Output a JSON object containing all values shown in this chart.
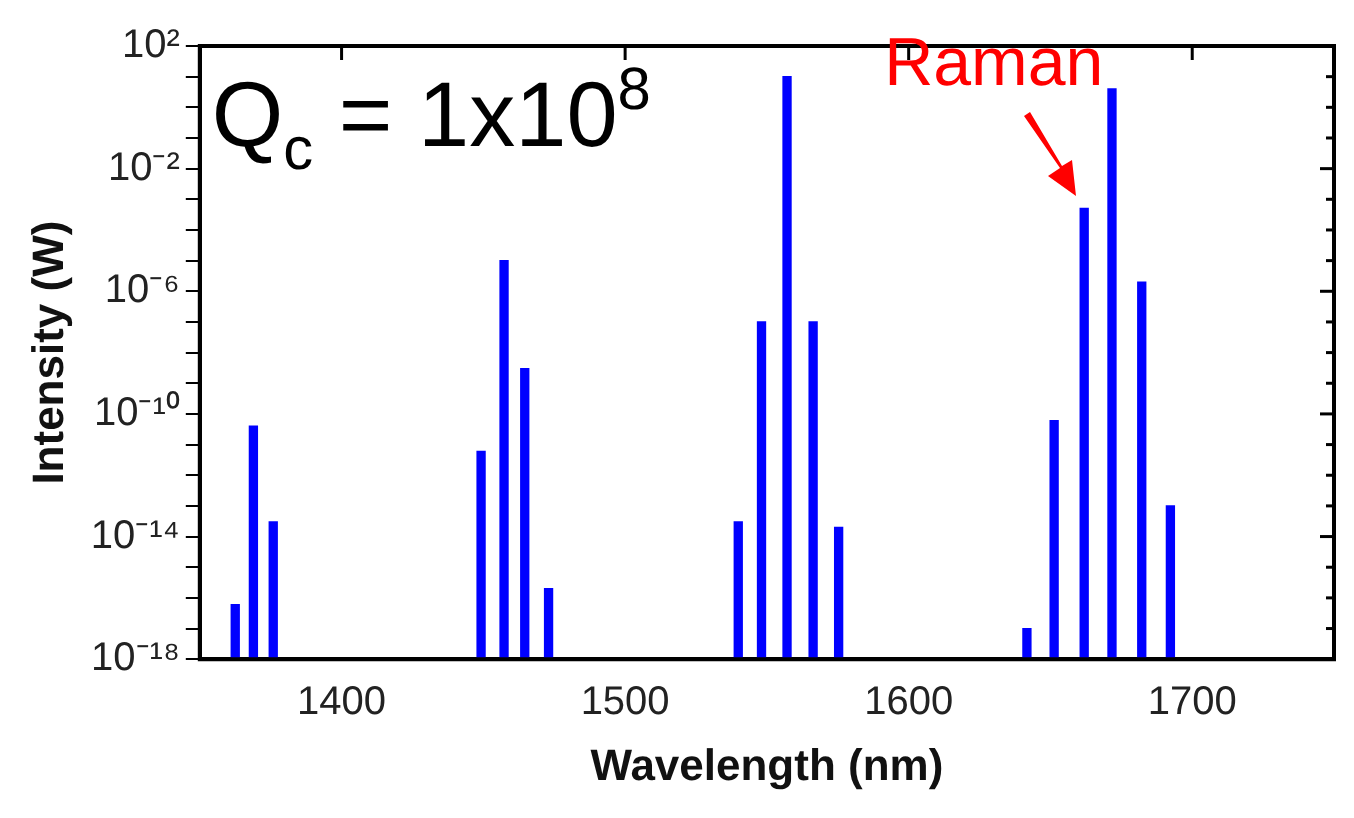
{
  "chart_data": {
    "type": "bar",
    "xlabel": "Wavelength (nm)",
    "ylabel": "Intensity (W)",
    "x": [
      1362.5,
      1368.9,
      1375.9,
      1449.2,
      1457.3,
      1464.6,
      1473,
      1539.9,
      1548.1,
      1557.1,
      1566.3,
      1575.3,
      1641.7,
      1651.3,
      1661.9,
      1671.7,
      1682.2,
      1692.3
    ],
    "series": [
      {
        "color": "#0000ff",
        "values": [
          6e-17,
          4e-11,
          3e-14,
          6e-12,
          1e-05,
          3e-09,
          2e-16,
          3e-14,
          1e-07,
          10,
          1e-07,
          2e-14,
          1e-17,
          6e-11,
          0.0005,
          4,
          2e-06,
          1e-13
        ]
      }
    ],
    "log": "y",
    "xlim": [
      1350,
      1750
    ],
    "xticks": [
      1400,
      1500,
      1600,
      1700
    ],
    "ylim": [
      1e-18,
      100
    ],
    "yticks": [
      {
        "value": 1e-18,
        "label": "10⁻¹⁸"
      },
      {
        "value": 1e-17,
        "label": null
      },
      {
        "value": 1e-16,
        "label": null
      },
      {
        "value": 1e-15,
        "label": null
      },
      {
        "value": 1e-14,
        "label": "10⁻¹⁴"
      },
      {
        "value": 1e-13,
        "label": null
      },
      {
        "value": 1e-12,
        "label": null
      },
      {
        "value": 1e-11,
        "label": null
      },
      {
        "value": 1e-10,
        "label": "10⁻¹⁰"
      },
      {
        "value": 1e-09,
        "label": null
      },
      {
        "value": 1e-08,
        "label": null
      },
      {
        "value": 1e-07,
        "label": null
      },
      {
        "value": 1e-06,
        "label": "10⁻⁶"
      },
      {
        "value": 1e-05,
        "label": null
      },
      {
        "value": 0.0001,
        "label": null
      },
      {
        "value": 0.001,
        "label": null
      },
      {
        "value": 0.01,
        "label": "10⁻²"
      },
      {
        "value": 0.1,
        "label": null
      },
      {
        "value": 1,
        "label": null
      },
      {
        "value": 10,
        "label": null
      },
      {
        "value": 100,
        "label": "10²"
      }
    ],
    "grid": false,
    "legend": false,
    "annotations": [
      "Q$_{c}$ = 1x10$^{8}$",
      {
        "text": "Raman",
        "x": 1661.9,
        "y": 0.0005
      }
    ]
  }
}
